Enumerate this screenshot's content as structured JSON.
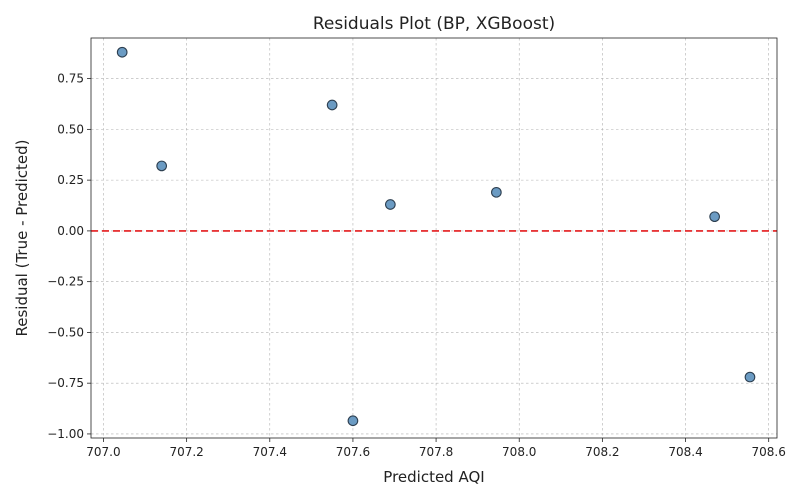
{
  "chart_data": {
    "type": "scatter",
    "title": "Residuals Plot (BP, XGBoost)",
    "xlabel": "Predicted AQI",
    "ylabel": "Residual (True - Predicted)",
    "xlim": [
      706.97,
      708.62
    ],
    "ylim": [
      -1.02,
      0.95
    ],
    "x_ticks": [
      707.0,
      707.2,
      707.4,
      707.6,
      707.8,
      708.0,
      708.2,
      708.4,
      708.6
    ],
    "x_tick_labels": [
      "707.0",
      "707.2",
      "707.4",
      "707.6",
      "707.8",
      "708.0",
      "708.2",
      "708.4",
      "708.6"
    ],
    "y_ticks": [
      -1.0,
      -0.75,
      -0.5,
      -0.25,
      0.0,
      0.25,
      0.5,
      0.75
    ],
    "y_tick_labels": [
      "−1.00",
      "−0.75",
      "−0.50",
      "−0.25",
      "0.00",
      "0.25",
      "0.50",
      "0.75"
    ],
    "grid": true,
    "reference_line": {
      "y": 0,
      "color": "#e41a1c",
      "style": "dashed"
    },
    "point_color": "#6b9bc3",
    "x": [
      707.045,
      707.14,
      707.55,
      707.6,
      707.69,
      707.945,
      708.47,
      708.555
    ],
    "y": [
      0.88,
      0.32,
      0.62,
      -0.935,
      0.13,
      0.19,
      0.07,
      -0.72
    ]
  }
}
